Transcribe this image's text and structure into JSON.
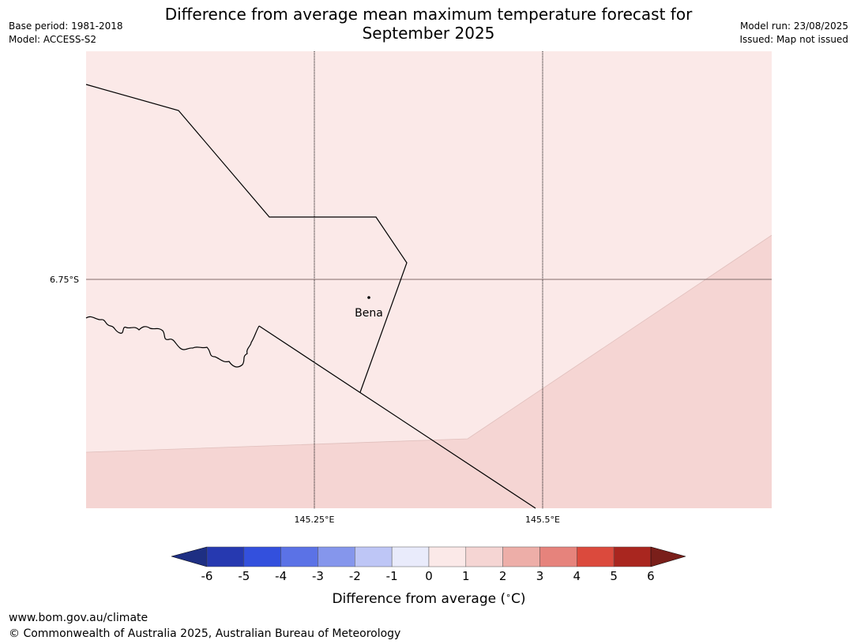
{
  "header": {
    "title_line1": "Difference from average mean maximum temperature forecast for",
    "title_line2": "September 2025",
    "base_period": "Base period: 1981-2018",
    "model": "Model: ACCESS-S2",
    "model_run": "Model run: 23/08/2025",
    "issued": "Issued: Map not issued"
  },
  "map": {
    "latitude_labels": [
      "6.75°S"
    ],
    "longitude_labels": [
      "145.25°E",
      "145.5°E"
    ],
    "place_label": "Bena",
    "colors": {
      "anomaly_0_1": "#fbe9e8",
      "anomaly_1_2": "#f5d5d3",
      "boundary": "#000000",
      "graticule": "#000000",
      "equator_like_line": "#806a6a"
    }
  },
  "legend": {
    "title": "Difference from average (",
    "unit_symbol": "∘",
    "unit_suffix": "C)",
    "tick_labels": [
      "-6",
      "-5",
      "-4",
      "-3",
      "-2",
      "-1",
      "0",
      "1",
      "2",
      "3",
      "4",
      "5",
      "6"
    ],
    "underflow_color": "#1e2f83",
    "overflow_color": "#7a1f1a",
    "bin_colors": [
      "#2639b0",
      "#3350dd",
      "#5b72e6",
      "#8596ec",
      "#bec6f6",
      "#e9ebfb",
      "#fbe9e8",
      "#f5d5d3",
      "#edaea8",
      "#e6837c",
      "#db4a3d",
      "#a9261f"
    ]
  },
  "footer": {
    "url": "www.bom.gov.au/climate",
    "copyright": "© Commonwealth of Australia 2025, Australian Bureau of Meteorology"
  }
}
